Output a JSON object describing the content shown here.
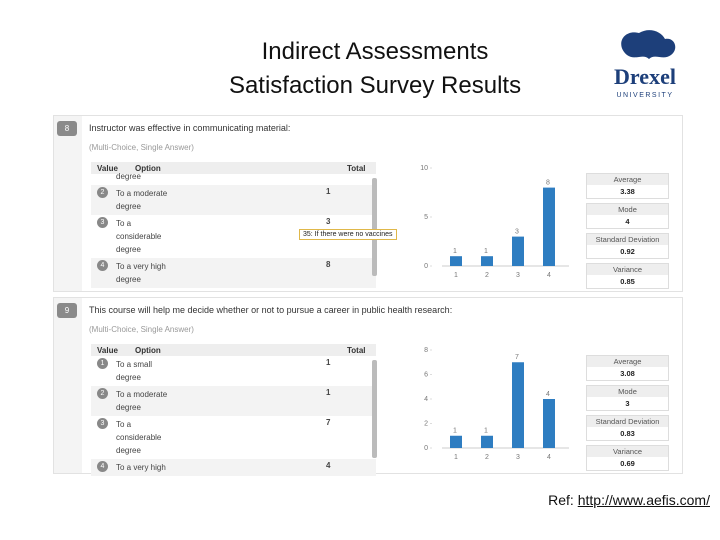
{
  "slide": {
    "title_lines": [
      "Indirect Assessments",
      "Satisfaction Survey Results"
    ],
    "logo": {
      "name": "Drexel",
      "subtitle": "UNIVERSITY"
    },
    "reference": {
      "label": "Ref:",
      "url": "http://www.aefis.com/"
    }
  },
  "panels": [
    {
      "number": 8,
      "question": "Instructor was effective in communicating material:",
      "answer_type": "(Multi-Choice, Single Answer)",
      "columns": [
        "Value",
        "Option",
        "Total"
      ],
      "rows": [
        {
          "option": "degree"
        },
        {
          "value": 2,
          "option": "To a moderate degree",
          "total": 1
        },
        {
          "value": 3,
          "option": "To a considerable degree",
          "total": 3
        },
        {
          "value": 4,
          "option": "To a very high degree",
          "total": 8
        }
      ],
      "tooltip": "35: If there were no vaccines",
      "chart_data": {
        "type": "bar",
        "categories": [
          "1",
          "2",
          "3",
          "4"
        ],
        "values": [
          1,
          1,
          3,
          8
        ],
        "color": "#2e7dc1",
        "ylim": [
          0,
          10
        ],
        "yticks": [
          0,
          5,
          10
        ]
      },
      "stats": [
        {
          "label": "Average",
          "value": 3.38
        },
        {
          "label": "Mode",
          "value": 4
        },
        {
          "label": "Standard Deviation",
          "value": 0.92
        },
        {
          "label": "Variance",
          "value": 0.85
        }
      ]
    },
    {
      "number": 9,
      "question": "This course will help me decide whether or not to pursue a career in public health research:",
      "answer_type": "(Multi-Choice, Single Answer)",
      "columns": [
        "Value",
        "Option",
        "Total"
      ],
      "rows": [
        {
          "value": 1,
          "option": "To a small degree",
          "total": 1
        },
        {
          "value": 2,
          "option": "To a moderate degree",
          "total": 1
        },
        {
          "value": 3,
          "option": "To a considerable degree",
          "total": 7
        },
        {
          "value": 4,
          "option": "To a very high",
          "total": 4
        }
      ],
      "chart_data": {
        "type": "bar",
        "categories": [
          "1",
          "2",
          "3",
          "4"
        ],
        "values": [
          1,
          1,
          7,
          4
        ],
        "color": "#2e7dc1",
        "ylim": [
          0,
          8
        ],
        "yticks": [
          0,
          2,
          4,
          6,
          8
        ]
      },
      "stats": [
        {
          "label": "Average",
          "value": 3.08
        },
        {
          "label": "Mode",
          "value": 3
        },
        {
          "label": "Standard Deviation",
          "value": 0.83
        },
        {
          "label": "Variance",
          "value": 0.69
        }
      ]
    }
  ]
}
